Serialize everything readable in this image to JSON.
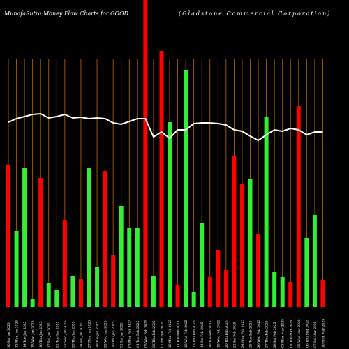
{
  "chart_data": {
    "type": "bar",
    "title": "MunafaSutra  Money Flow  Charts for GOOD",
    "subtitle": "(Gladstone  Commercial Corporation)",
    "categories": [
      "10 Fri Jan 2025",
      "13 Mon Jan 2025",
      "14 Tue Jan 2025",
      "15 Wed Jan 2025",
      "16 Thu Jan 2025",
      "17 Fri Jan 2025",
      "21 Tue Jan 2025",
      "22 Wed Jan 2025",
      "23 Thu Jan 2025",
      "24 Fri Jan 2025",
      "27 Mon Jan 2025",
      "28 Tue Jan 2025",
      "29 Wed Jan 2025",
      "30 Thu Jan 2025",
      "31 Fri Jan 2025",
      "03 Mon Feb 2025",
      "04 Tue Feb 2025",
      "05 Wed Feb 2025",
      "06 Thu Feb 2025",
      "07 Fri Feb 2025",
      "10 Mon Feb 2025",
      "11 Tue Feb 2025",
      "12 Wed Feb 2025",
      "13 Thu Feb 2025",
      "14 Fri Feb 2025",
      "18 Tue Feb 2025",
      "19 Wed Feb 2025",
      "20 Thu Feb 2025",
      "21 Fri Feb 2025",
      "24 Mon Feb 2025",
      "25 Tue Feb 2025",
      "26 Wed Feb 2025",
      "27 Thu Feb 2025",
      "28 Fri Feb 2025",
      "03 Mon Mar 2025",
      "04 Tue Mar 2025",
      "05 Wed Mar 2025",
      "06 Thu Mar 2025",
      "07 Fri Mar 2025",
      "10 Mon Mar 2025"
    ],
    "values": [
      204,
      109,
      199,
      11,
      185,
      34,
      24,
      125,
      45,
      40,
      200,
      58,
      195,
      75,
      145,
      113,
      113,
      460,
      45,
      367,
      265,
      31,
      340,
      21,
      121,
      43,
      82,
      53,
      217,
      176,
      183,
      105,
      273,
      51,
      43,
      36,
      288,
      99,
      132,
      39
    ],
    "colors": [
      "#ff0000",
      "#33ee33",
      "#33ee33",
      "#33ee33",
      "#ff0000",
      "#33ee33",
      "#33ee33",
      "#ff0000",
      "#33ee33",
      "#ff0000",
      "#33ee33",
      "#33ee33",
      "#ff0000",
      "#ff0000",
      "#33ee33",
      "#33ee33",
      "#33ee33",
      "#ff0000",
      "#33ee33",
      "#ff0000",
      "#33ee33",
      "#ff0000",
      "#33ee33",
      "#33ee33",
      "#33ee33",
      "#ff0000",
      "#ff0000",
      "#ff0000",
      "#ff0000",
      "#ff0000",
      "#33ee33",
      "#ff0000",
      "#33ee33",
      "#33ee33",
      "#33ee33",
      "#ff0000",
      "#ff0000",
      "#33ee33",
      "#33ee33",
      "#ff0000"
    ],
    "line": {
      "color": "#ffffff",
      "values": [
        265,
        270,
        273,
        276,
        277,
        271,
        273,
        276,
        271,
        272,
        270,
        271,
        270,
        264,
        262,
        266,
        270,
        270,
        244,
        251,
        242,
        254,
        254,
        263,
        264,
        264,
        263,
        261,
        254,
        252,
        245,
        239,
        247,
        254,
        252,
        256,
        254,
        247,
        251,
        251
      ]
    },
    "ylim": [
      0,
      440
    ]
  }
}
